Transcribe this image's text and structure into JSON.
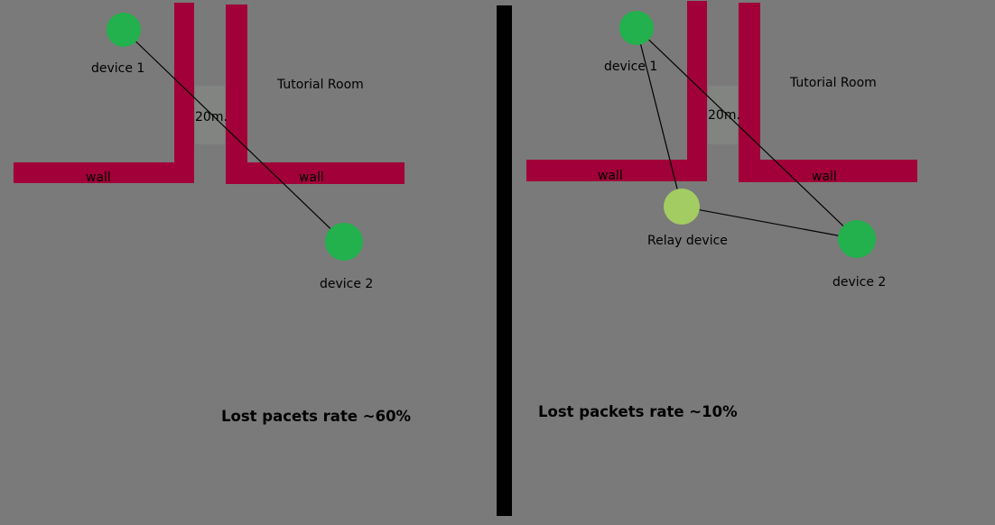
{
  "colors": {
    "background": "#7a7a7a",
    "wall": "#a10038",
    "device": "#22b14c",
    "relay_device": "#a3cc62",
    "divider": "#000000",
    "doorway": "#868a86",
    "link_line": "#000000"
  },
  "left_panel": {
    "device1_label": "device 1",
    "device2_label": "device 2",
    "room_label": "Tutorial Room",
    "distance_label": "20m.",
    "wall_left_label": "wall",
    "wall_right_label": "wall",
    "rate_label": "Lost pacets rate ~60%"
  },
  "right_panel": {
    "device1_label": "device 1",
    "device2_label": "device 2",
    "relay_label": "Relay device",
    "room_label": "Tutorial Room",
    "distance_label": "20m.",
    "wall_left_label": "wall",
    "wall_right_label": "wall",
    "rate_label": "Lost packets rate ~10%"
  }
}
